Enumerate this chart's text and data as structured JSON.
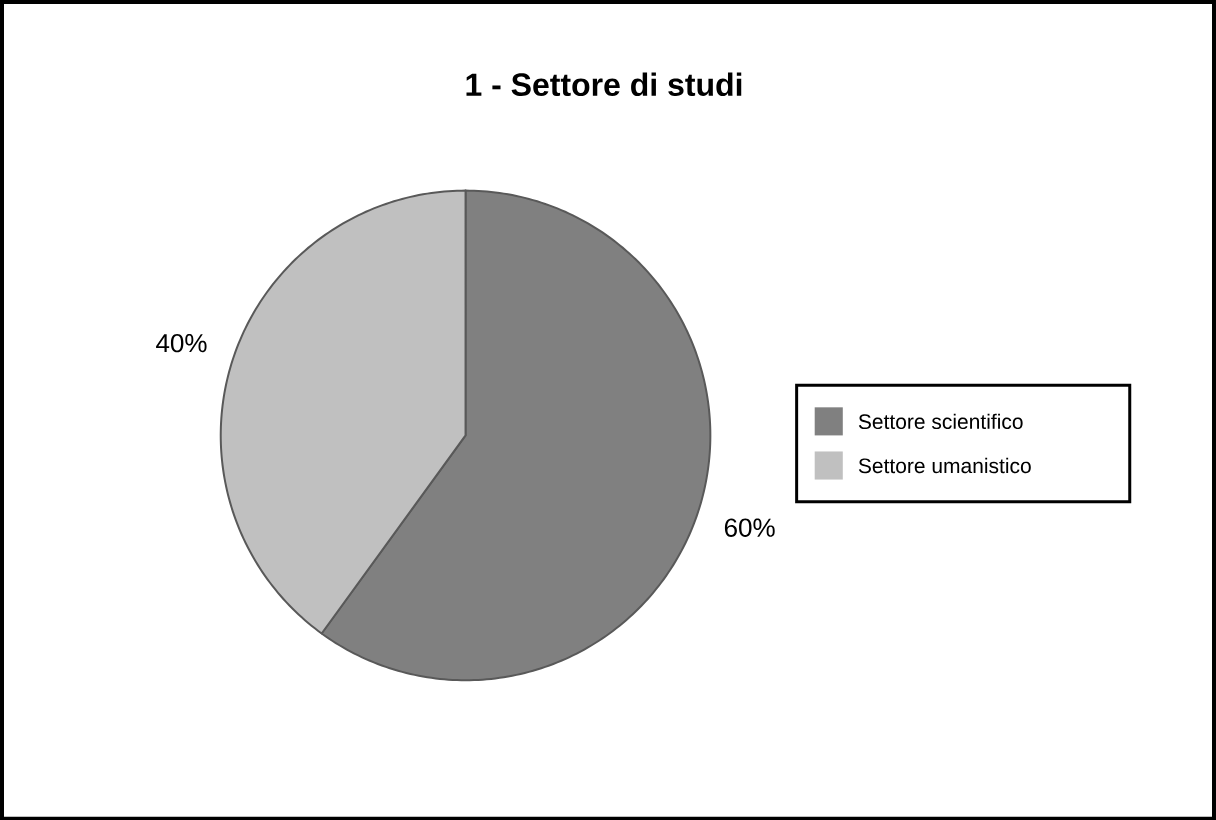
{
  "chart_data": {
    "type": "pie",
    "title": "1 - Settore di studi",
    "categories": [
      "Settore scientifico",
      "Settore umanistico"
    ],
    "values": [
      60,
      40
    ],
    "colors": [
      "#808080",
      "#c0c0c0"
    ],
    "value_labels": [
      "60%",
      "40%"
    ],
    "legend": "right"
  }
}
